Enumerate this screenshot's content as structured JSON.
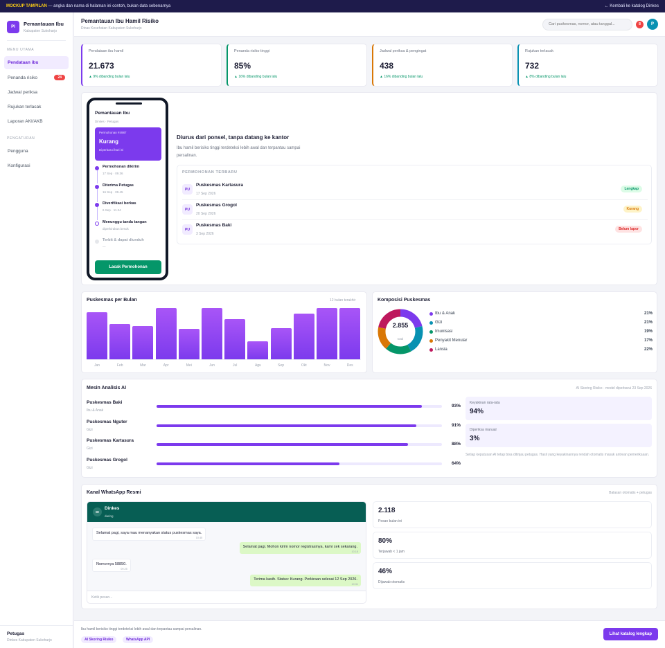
{
  "banner": {
    "tag": "MOCKUP TAMPILAN",
    "text": " — angka dan nama di halaman ini contoh, bukan data sebenarnya",
    "back": "← Kembali ke katalog Dinkes"
  },
  "brand": {
    "logo": "PI",
    "title": "Pemantauan Ibu",
    "sub": "Kabupaten Sukoharjo"
  },
  "sidebar": {
    "menu_title": "MENU UTAMA",
    "items": [
      {
        "label": "Pendataan ibu"
      },
      {
        "label": "Penanda risiko",
        "badge": "24"
      },
      {
        "label": "Jadwal periksa"
      },
      {
        "label": "Rujukan terlacak"
      },
      {
        "label": "Laporan AKI/AKB"
      }
    ],
    "settings_title": "PENGATURAN",
    "settings": [
      {
        "label": "Pengguna"
      },
      {
        "label": "Konfigurasi"
      }
    ],
    "user_name": "Petugas",
    "user_role": "Dinkes Kabupaten Sukoharjo"
  },
  "header": {
    "title": "Pemantauan Ibu Hamil Risiko",
    "sub": "Dinas Kesehatan Kabupaten Sukoharjo",
    "search_placeholder": "Cari puskesmas, nomor, atau tanggal...",
    "notif": "8",
    "avatar": "P"
  },
  "stats": [
    {
      "label": "Pendataan ibu hamil",
      "value": "21.673",
      "delta": "▲ 9% dibanding bulan lalu",
      "accent": "#7c3aed"
    },
    {
      "label": "Penanda risiko tinggi",
      "value": "85%",
      "delta": "▲ 16% dibanding bulan lalu",
      "accent": "#059669"
    },
    {
      "label": "Jadwal periksa & pengingat",
      "value": "438",
      "delta": "▲ 16% dibanding bulan lalu",
      "accent": "#d97706"
    },
    {
      "label": "Rujukan terlacak",
      "value": "732",
      "delta": "▲ 8% dibanding bulan lalu",
      "accent": "#0891b2"
    }
  ],
  "phone": {
    "title": "Pemantauan Ibu",
    "sub": "Dinkes · Petugas",
    "card_id": "Permohonan #4987",
    "card_status": "Kurang",
    "card_note": "Diperbarui hari ini",
    "steps": [
      {
        "label": "Permohonan dikirim",
        "date": "17 Sep · 09.36",
        "state": "done"
      },
      {
        "label": "Diterima Petugas",
        "date": "16 Sep · 09.45",
        "state": "done"
      },
      {
        "label": "Diverifikasi berkas",
        "date": "6 Sep · 11.24",
        "state": "done"
      },
      {
        "label": "Menunggu tanda tangan",
        "date": "diperkirakan besok",
        "state": "pending"
      },
      {
        "label": "Terbit & dapat diunduh",
        "date": "—",
        "state": "future"
      }
    ],
    "button": "Lacak Permohonan"
  },
  "requests": {
    "heading": "Diurus dari ponsel, tanpa datang ke kantor",
    "desc": "Ibu hamil berisiko tinggi terdeteksi lebih awal dan terpantau sampai persalinan.",
    "box_title": "PERMOHONAN TERBARU",
    "rows": [
      {
        "icon": "PU",
        "name": "Puskesmas Kartasura",
        "date": "17 Sep 2026",
        "status": "Lengkap",
        "color": "#059669",
        "bg": "#dcfce7"
      },
      {
        "icon": "PU",
        "name": "Puskesmas Grogol",
        "date": "20 Sep 2026",
        "status": "Kurang",
        "color": "#d97706",
        "bg": "#fef3c7"
      },
      {
        "icon": "PU",
        "name": "Puskesmas Baki",
        "date": "3 Sep 2026",
        "status": "Belum lapor",
        "color": "#dc2626",
        "bg": "#fee2e2"
      }
    ]
  },
  "chart_data": [
    {
      "type": "bar",
      "title": "Puskesmas per Bulan",
      "subtitle": "12 bulan terakhir",
      "categories": [
        "Jan",
        "Feb",
        "Mar",
        "Apr",
        "Mei",
        "Jun",
        "Jul",
        "Agu",
        "Sep",
        "Okt",
        "Nov",
        "Des"
      ],
      "values": [
        90,
        67,
        63,
        98,
        58,
        98,
        76,
        34,
        59,
        87,
        98,
        98
      ],
      "ylim": [
        0,
        100
      ]
    },
    {
      "type": "pie",
      "title": "Komposisi Puskesmas",
      "center_value": "2.855",
      "center_label": "total",
      "slices": [
        {
          "label": "Ibu & Anak",
          "value": 21,
          "text": "21%",
          "color": "#7c3aed"
        },
        {
          "label": "Gizi",
          "value": 21,
          "text": "21%",
          "color": "#0891b2"
        },
        {
          "label": "Imunisasi",
          "value": 19,
          "text": "19%",
          "color": "#059669"
        },
        {
          "label": "Penyakit Menular",
          "value": 17,
          "text": "17%",
          "color": "#d97706"
        },
        {
          "label": "Lansia",
          "value": 22,
          "text": "22%",
          "color": "#be185d"
        }
      ]
    }
  ],
  "ai": {
    "title": "Mesin Analisis AI",
    "meta": "AI Skoring Risiko · model diperbarui 23 Sep 2026",
    "rows": [
      {
        "name": "Puskesmas Baki",
        "cat": "Ibu & Anak",
        "pct": 93,
        "text": "93%"
      },
      {
        "name": "Puskesmas Nguter",
        "cat": "Gizi",
        "pct": 91,
        "text": "91%"
      },
      {
        "name": "Puskesmas Kartasura",
        "cat": "Gizi",
        "pct": 88,
        "text": "88%"
      },
      {
        "name": "Puskesmas Grogol",
        "cat": "Gizi",
        "pct": 64,
        "text": "64%"
      }
    ],
    "avg_label": "Keyakinan rata-rata",
    "avg_value": "94%",
    "manual_label": "Diperiksa manual",
    "manual_value": "3%",
    "note": "Setiap keputusan AI tetap bisa ditinjau petugas. Hasil yang keyakinannya rendah otomatis masuk antrean pemeriksaan."
  },
  "wa": {
    "title": "Kanal WhatsApp Resmi",
    "meta": "Balasan otomatis + petugas",
    "avatar": "DI",
    "name": "Dinkes",
    "status": "daring",
    "messages": [
      {
        "dir": "in",
        "text": "Selamat pagi, saya mau menanyakan status puskesmas saya.",
        "time": "10.45"
      },
      {
        "dir": "out",
        "text": "Selamat pagi. Mohon kirim nomor registrasinya, kami cek sekarang.",
        "time": "10.18"
      },
      {
        "dir": "in",
        "text": "Nomornya 58850.",
        "time": "09.25"
      },
      {
        "dir": "out",
        "text": "Terima kasih. Status: Kurang. Perkiraan selesai 12 Sep 2026.",
        "time": "10.31"
      }
    ],
    "input_placeholder": "Ketik pesan...",
    "kpis": [
      {
        "value": "2.118",
        "label": "Pesan bulan ini"
      },
      {
        "value": "80%",
        "label": "Terjawab < 1 jam"
      },
      {
        "value": "46%",
        "label": "Dijawab otomatis"
      }
    ]
  },
  "footer": {
    "text": "Ibu hamil berisiko tinggi terdeteksi lebih awal dan terpantau sampai persalinan.",
    "tags": [
      "AI Skoring Risiko",
      "WhatsApp API"
    ],
    "button": "Lihat katalog lengkap"
  }
}
